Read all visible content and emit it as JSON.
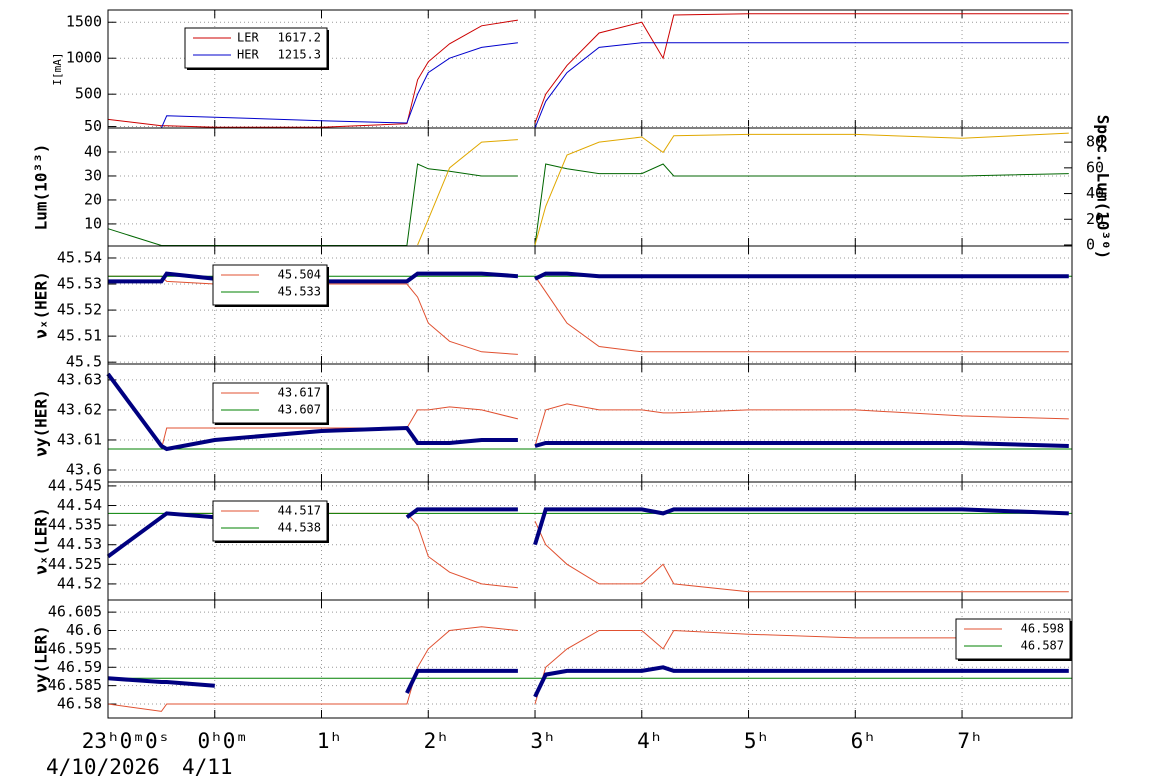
{
  "chart_data": [
    {
      "type": "line",
      "ylabel": "I[mA]",
      "xlim": [
        -1,
        8.03
      ],
      "ylim": [
        30,
        1670
      ],
      "yticks": [
        50,
        500,
        1000,
        1500
      ],
      "legend": "upper left",
      "x": [
        -1,
        -0.5,
        -0.45,
        0,
        1,
        1.8,
        1.9,
        2.0,
        2.2,
        2.5,
        2.84,
        2.9,
        3.0,
        3.1,
        3.3,
        3.6,
        4.0,
        4.2,
        4.3,
        5,
        6,
        7,
        8
      ],
      "series": [
        {
          "name": "LER",
          "legend_value": 1617.2,
          "color": "#cc0000",
          "values": [
            150,
            60,
            60,
            40,
            40,
            90,
            700,
            950,
            1200,
            1450,
            1530,
            null,
            100,
            500,
            900,
            1350,
            1500,
            1000,
            1600,
            1617,
            1617,
            1617,
            1617
          ]
        },
        {
          "name": "HER",
          "legend_value": 1215.3,
          "color": "#0000cc",
          "values": [
            30,
            30,
            200,
            180,
            130,
            100,
            500,
            800,
            1000,
            1150,
            1215,
            null,
            30,
            400,
            800,
            1150,
            1215,
            1215,
            1215,
            1215,
            1215,
            1215,
            1215
          ]
        }
      ]
    },
    {
      "type": "line",
      "ylabel": "Lum(10³³)",
      "y2label": "Spec. Lum(10³⁰)",
      "xlim": [
        -1,
        8.03
      ],
      "ylim": [
        0.8,
        50
      ],
      "yticks": [
        10,
        20,
        30,
        40
      ],
      "y2lim": [
        -0.8,
        91
      ],
      "y2ticks": [
        0,
        20,
        40,
        60,
        80
      ],
      "x": [
        -1,
        -0.5,
        -0.45,
        0,
        1,
        1.8,
        1.9,
        2.0,
        2.2,
        2.5,
        2.84,
        2.9,
        3.0,
        3.1,
        3.3,
        3.6,
        4.0,
        4.2,
        4.3,
        5,
        6,
        7,
        8
      ],
      "series": [
        {
          "color": "#006600",
          "values": [
            8,
            1,
            1,
            1,
            1,
            1,
            35,
            33,
            32,
            30,
            30,
            null,
            1,
            35,
            33,
            31,
            31,
            35,
            30,
            30,
            30,
            30,
            31
          ]
        },
        {
          "color": "#e0a800",
          "axis": "y2",
          "values": [
            null,
            null,
            null,
            null,
            null,
            null,
            0,
            20,
            60,
            80,
            82,
            null,
            0,
            30,
            70,
            80,
            84,
            72,
            85,
            86,
            86,
            83,
            87
          ]
        }
      ]
    },
    {
      "type": "line",
      "ylabel": "νₓ(HER)",
      "xlim": [
        -1,
        8.03
      ],
      "ylim": [
        45.4993,
        45.5446
      ],
      "yticks": [
        45.5,
        45.51,
        45.52,
        45.53,
        45.54
      ],
      "legend": "upper left",
      "x": [
        -1,
        -0.5,
        -0.45,
        0,
        1,
        1.8,
        1.9,
        2.0,
        2.2,
        2.5,
        2.84,
        2.9,
        3.0,
        3.1,
        3.3,
        3.6,
        4.0,
        4.2,
        4.3,
        5,
        6,
        7,
        8
      ],
      "series": [
        {
          "legend_value": 45.504,
          "color": "#e05030",
          "values": [
            45.533,
            45.533,
            45.531,
            45.53,
            45.53,
            45.53,
            45.525,
            45.515,
            45.508,
            45.504,
            45.503,
            null,
            45.533,
            45.527,
            45.515,
            45.506,
            45.504,
            45.504,
            45.504,
            45.504,
            45.504,
            45.504,
            45.504
          ]
        },
        {
          "color": "#008000",
          "level": 45.533
        },
        {
          "color": "#000080",
          "width": 4,
          "values": [
            45.531,
            45.531,
            45.534,
            45.532,
            45.531,
            45.531,
            45.534,
            45.534,
            45.534,
            45.534,
            45.533,
            null,
            45.532,
            45.534,
            45.534,
            45.533,
            45.533,
            45.533,
            45.533,
            45.533,
            45.533,
            45.533,
            45.533
          ]
        }
      ]
    },
    {
      "type": "line",
      "ylabel": "νy(HER)",
      "xlim": [
        -1,
        8.03
      ],
      "ylim": [
        43.596,
        43.6353
      ],
      "yticks": [
        43.6,
        43.61,
        43.62,
        43.63
      ],
      "legend": "upper left",
      "x": [
        -1,
        -0.5,
        -0.45,
        0,
        1,
        1.8,
        1.9,
        2.0,
        2.2,
        2.5,
        2.84,
        2.9,
        3.0,
        3.1,
        3.3,
        3.6,
        4.0,
        4.2,
        4.3,
        5,
        6,
        7,
        8
      ],
      "series": [
        {
          "legend_value": 43.617,
          "color": "#e05030",
          "values": [
            43.607,
            43.607,
            43.614,
            43.614,
            43.614,
            43.614,
            43.62,
            43.62,
            43.621,
            43.62,
            43.617,
            null,
            43.608,
            43.62,
            43.622,
            43.62,
            43.62,
            43.619,
            43.619,
            43.62,
            43.62,
            43.618,
            43.617
          ]
        },
        {
          "color": "#008000",
          "level": 43.607
        },
        {
          "color": "#000080",
          "width": 4,
          "values": [
            43.632,
            43.608,
            43.607,
            43.61,
            43.613,
            43.614,
            43.609,
            43.609,
            43.609,
            43.61,
            43.61,
            null,
            43.608,
            43.609,
            43.609,
            43.609,
            43.609,
            43.609,
            43.609,
            43.609,
            43.609,
            43.609,
            43.608
          ]
        }
      ]
    },
    {
      "type": "line",
      "ylabel": "νₓ(LER)",
      "xlim": [
        -1,
        8.03
      ],
      "ylim": [
        44.5159,
        44.546
      ],
      "yticks": [
        44.52,
        44.525,
        44.53,
        44.535,
        44.54,
        44.545
      ],
      "legend": "upper left",
      "x": [
        -1,
        -0.5,
        -0.45,
        0,
        1,
        1.8,
        1.9,
        2.0,
        2.2,
        2.5,
        2.84,
        2.9,
        3.0,
        3.1,
        3.3,
        3.6,
        4.0,
        4.2,
        4.3,
        5,
        6,
        7,
        8
      ],
      "series": [
        {
          "legend_value": 44.517,
          "color": "#e05030",
          "values": [
            44.527,
            44.537,
            44.538,
            44.538,
            44.538,
            44.538,
            44.535,
            44.527,
            44.523,
            44.52,
            44.519,
            null,
            44.536,
            44.53,
            44.525,
            44.52,
            44.52,
            44.525,
            44.52,
            44.518,
            44.518,
            44.518,
            44.518
          ]
        },
        {
          "color": "#008000",
          "level": 44.538
        },
        {
          "color": "#000080",
          "width": 4,
          "values": [
            44.527,
            44.537,
            44.538,
            44.537,
            null,
            44.537,
            44.539,
            44.539,
            44.539,
            44.539,
            44.539,
            null,
            44.53,
            44.539,
            44.539,
            44.539,
            44.539,
            44.538,
            44.539,
            44.539,
            44.539,
            44.539,
            44.538
          ]
        }
      ]
    },
    {
      "type": "line",
      "ylabel": "νy(LER)",
      "xlim": [
        -1,
        8.03
      ],
      "ylim": [
        46.5762,
        46.6083
      ],
      "yticks": [
        46.58,
        46.585,
        46.59,
        46.595,
        46.6,
        46.605
      ],
      "legend": "upper right",
      "xticks": [
        {
          "value": -1,
          "label": "23ʰ0ᵐ0ˢ"
        },
        {
          "value": 0,
          "label": "0ʰ0ᵐ"
        },
        {
          "value": 1,
          "label": "1ʰ"
        },
        {
          "value": 2,
          "label": "2ʰ"
        },
        {
          "value": 3,
          "label": "3ʰ"
        },
        {
          "value": 4,
          "label": "4ʰ"
        },
        {
          "value": 5,
          "label": "5ʰ"
        },
        {
          "value": 6,
          "label": "6ʰ"
        },
        {
          "value": 7,
          "label": "7ʰ"
        }
      ],
      "dates": [
        "4/10/2026",
        "4/11"
      ],
      "x": [
        -1,
        -0.5,
        -0.45,
        0,
        1,
        1.8,
        1.9,
        2.0,
        2.2,
        2.5,
        2.84,
        2.9,
        3.0,
        3.1,
        3.3,
        3.6,
        4.0,
        4.2,
        4.3,
        5,
        6,
        7,
        8
      ],
      "series": [
        {
          "legend_value": 46.598,
          "color": "#e05030",
          "values": [
            46.58,
            46.578,
            46.58,
            46.58,
            46.58,
            46.58,
            46.59,
            46.595,
            46.6,
            46.601,
            46.6,
            null,
            46.58,
            46.59,
            46.595,
            46.6,
            46.6,
            46.595,
            46.6,
            46.599,
            46.598,
            46.598,
            46.598
          ]
        },
        {
          "color": "#008000",
          "level": 46.587
        },
        {
          "color": "#000080",
          "width": 4,
          "values": [
            46.587,
            46.586,
            46.586,
            46.585,
            null,
            46.583,
            46.589,
            46.589,
            46.589,
            46.589,
            46.589,
            null,
            46.582,
            46.588,
            46.589,
            46.589,
            46.589,
            46.59,
            46.589,
            46.589,
            46.589,
            46.589,
            46.589
          ]
        }
      ]
    }
  ]
}
